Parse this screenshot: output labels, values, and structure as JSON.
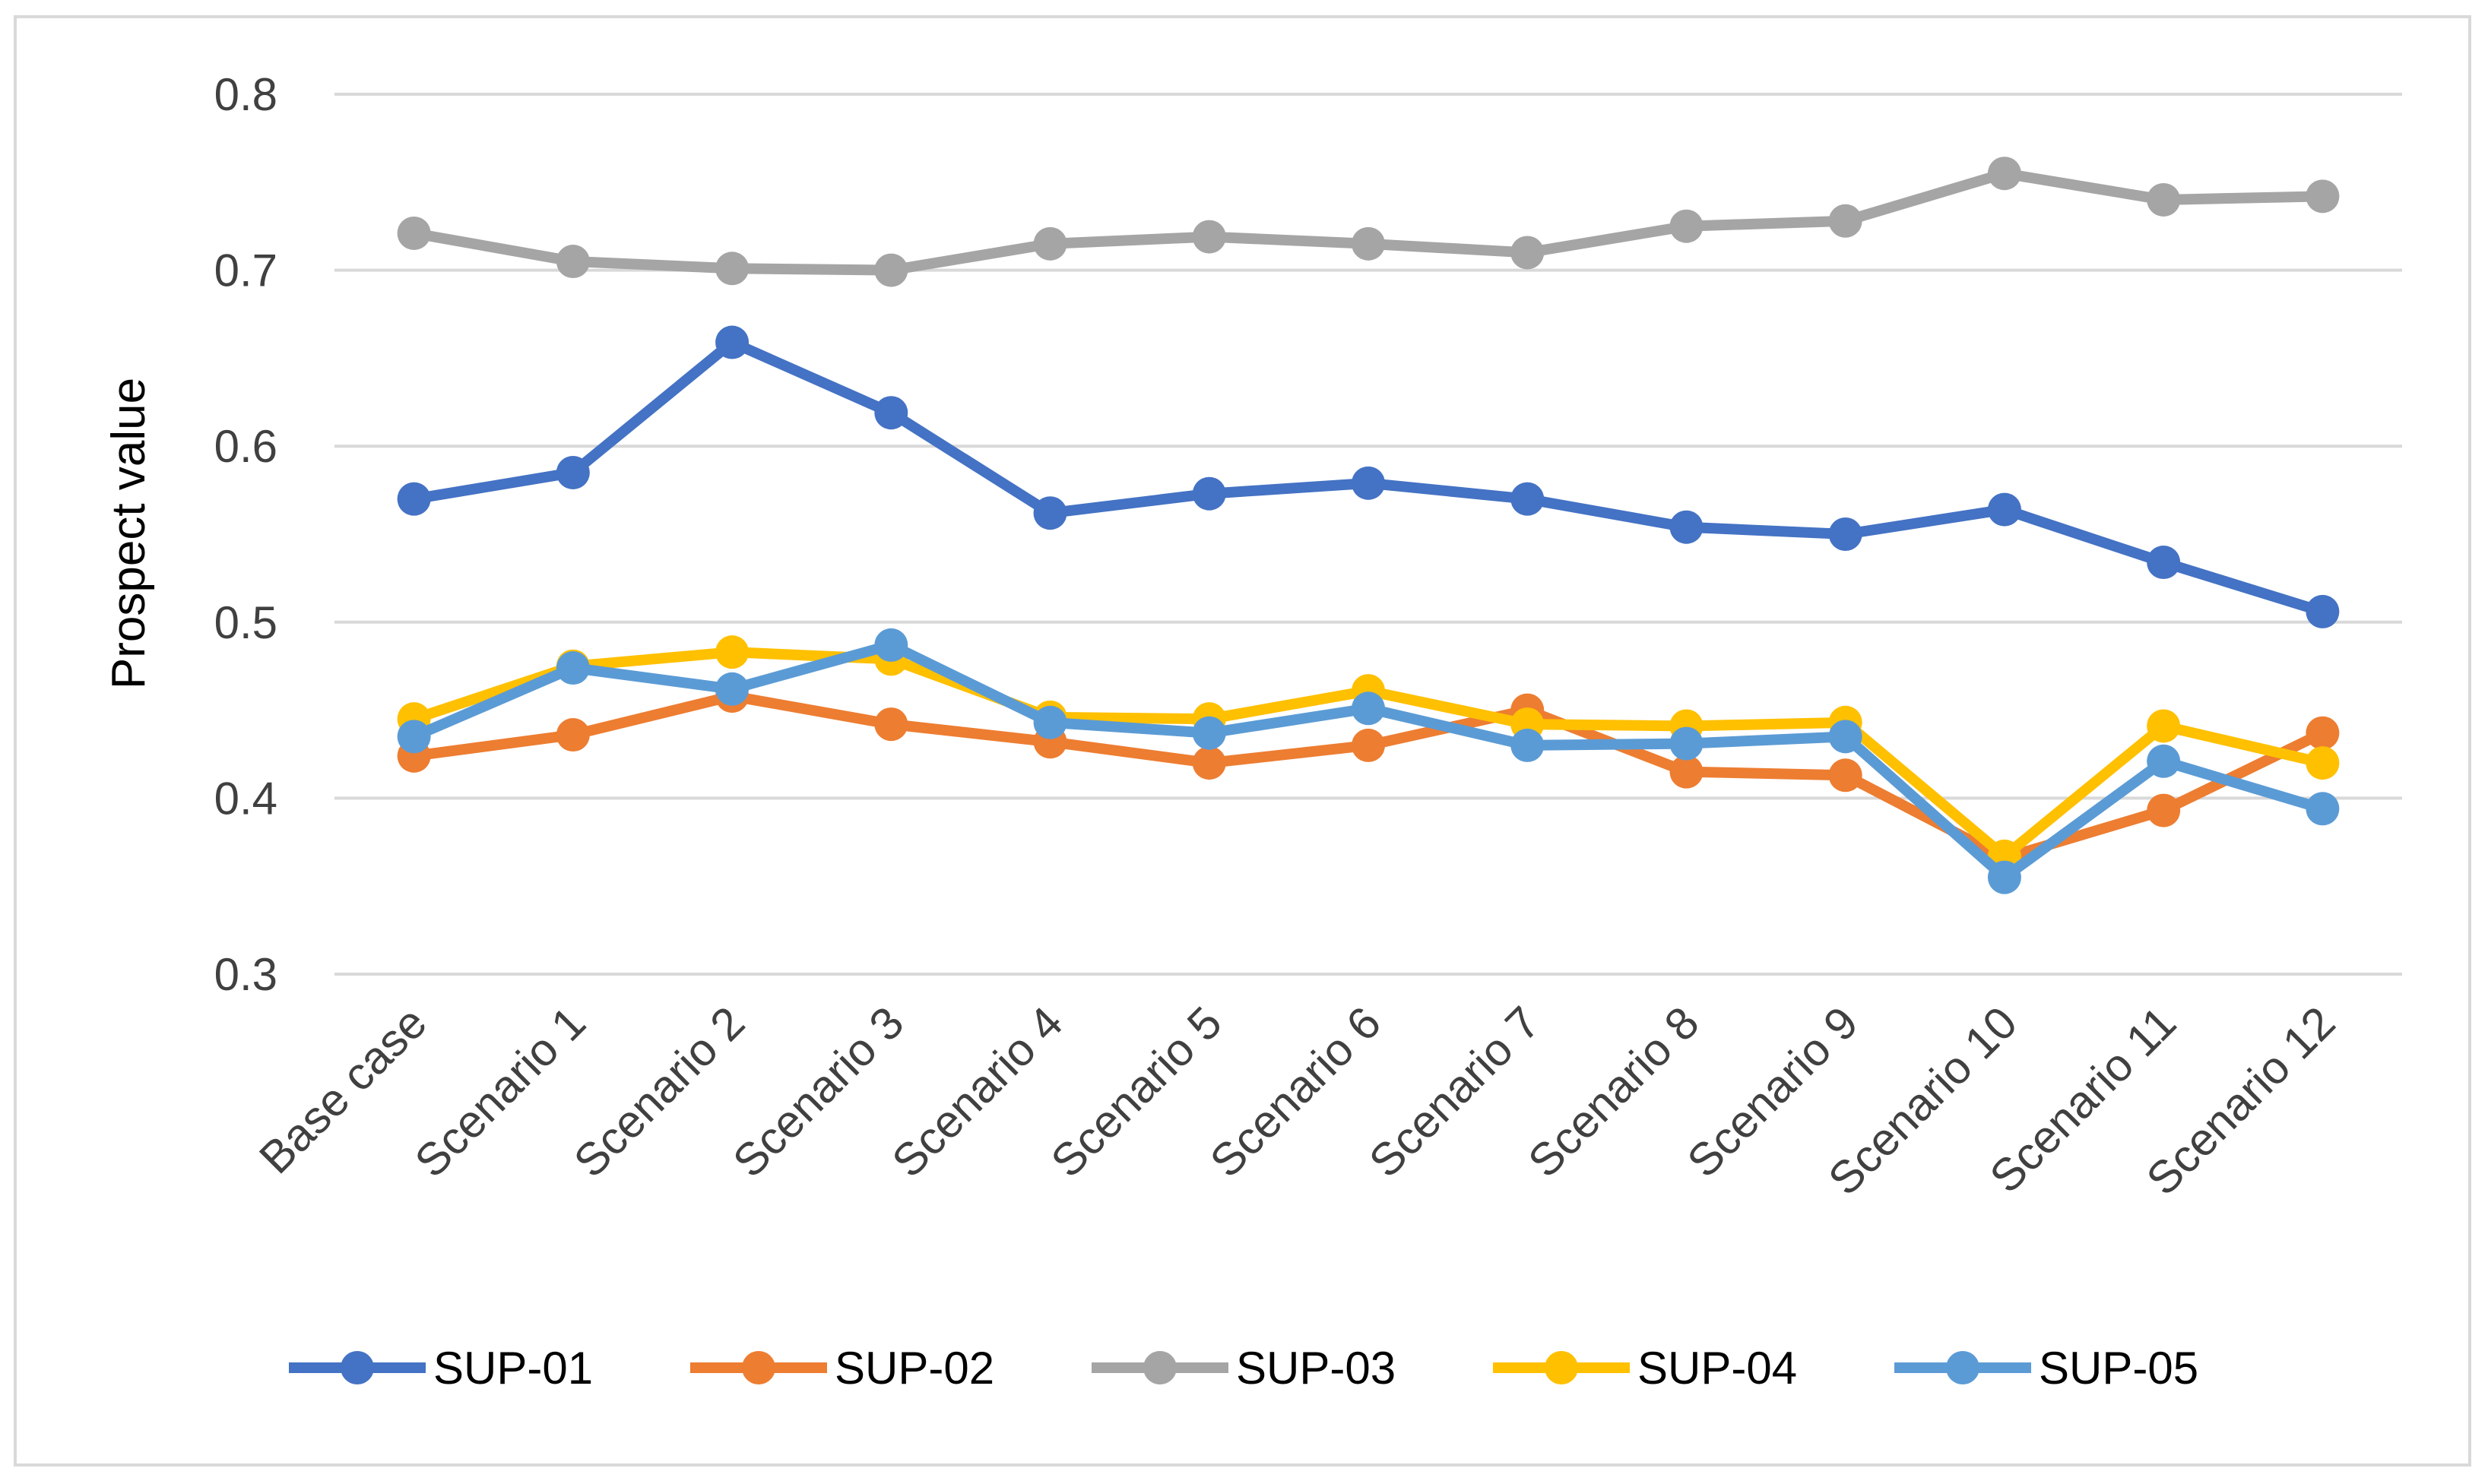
{
  "chart_data": {
    "type": "line",
    "title": "",
    "xlabel": "",
    "ylabel": "Prospect value",
    "ylim": [
      0.3,
      0.8
    ],
    "yticks": [
      "0.3",
      "0.4",
      "0.5",
      "0.6",
      "0.7",
      "0.8"
    ],
    "grid": true,
    "legend_position": "bottom",
    "categories": [
      "Base case",
      "Scenario 1",
      "Scenario 2",
      "Scenario 3",
      "Scenario 4",
      "Scenario 5",
      "Scenario 6",
      "Scenario 7",
      "Scenario 8",
      "Scenario 9",
      "Scenario 10",
      "Scenario 11",
      "Scenario 12"
    ],
    "series": [
      {
        "name": "SUP-01",
        "color": "#4472c4",
        "values": [
          0.57,
          0.585,
          0.659,
          0.619,
          0.562,
          0.573,
          0.579,
          0.57,
          0.554,
          0.55,
          0.564,
          0.534,
          0.506
        ]
      },
      {
        "name": "SUP-02",
        "color": "#ed7d31",
        "values": [
          0.424,
          0.436,
          0.458,
          0.442,
          0.432,
          0.42,
          0.43,
          0.45,
          0.415,
          0.413,
          0.366,
          0.393,
          0.437
        ]
      },
      {
        "name": "SUP-03",
        "color": "#a5a5a5",
        "values": [
          0.721,
          0.705,
          0.701,
          0.7,
          0.715,
          0.719,
          0.715,
          0.71,
          0.725,
          0.728,
          0.755,
          0.74,
          0.742
        ]
      },
      {
        "name": "SUP-04",
        "color": "#ffc000",
        "values": [
          0.445,
          0.475,
          0.483,
          0.479,
          0.446,
          0.445,
          0.461,
          0.442,
          0.441,
          0.443,
          0.367,
          0.441,
          0.42
        ]
      },
      {
        "name": "SUP-05",
        "color": "#5b9bd5",
        "values": [
          0.435,
          0.474,
          0.462,
          0.487,
          0.443,
          0.437,
          0.451,
          0.43,
          0.431,
          0.435,
          0.355,
          0.421,
          0.394
        ]
      }
    ]
  }
}
